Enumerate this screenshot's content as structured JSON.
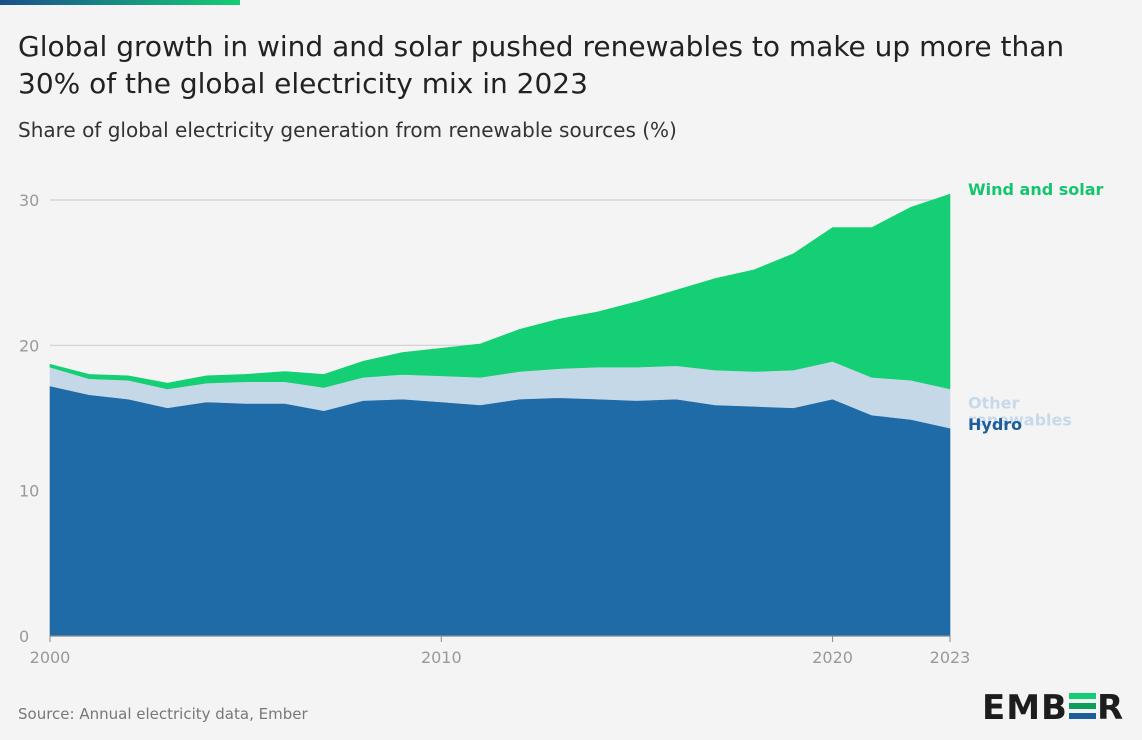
{
  "title": "Global growth in wind and solar pushed renewables to make up more than 30% of the global electricity mix in 2023",
  "subtitle": "Share of global electricity generation from renewable sources (%)",
  "source": "Source: Annual electricity data, Ember",
  "logo": {
    "text_before": "EMB",
    "text_after": "R",
    "mark_colors": [
      "#13ce74",
      "#0d9f5a",
      "#1b5e9b"
    ]
  },
  "colors": {
    "background": "#f4f4f4",
    "hydro": "#1f6ba7",
    "other": "#c5d8e8",
    "wind_solar": "#14cf73",
    "grid": "#cfcfcf",
    "axis_text": "#999999",
    "topbar_start": "#1b4e8c",
    "topbar_end": "#13ce74"
  },
  "chart_data": {
    "type": "area",
    "stacked": true,
    "x": [
      2000,
      2001,
      2002,
      2003,
      2004,
      2005,
      2006,
      2007,
      2008,
      2009,
      2010,
      2011,
      2012,
      2013,
      2014,
      2015,
      2016,
      2017,
      2018,
      2019,
      2020,
      2021,
      2022,
      2023
    ],
    "series": [
      {
        "name": "Hydro",
        "color": "#1f6ba7",
        "label_color": "#1b5e9b",
        "values": [
          17.2,
          16.6,
          16.3,
          15.7,
          16.1,
          16.0,
          16.0,
          15.5,
          16.2,
          16.3,
          16.1,
          15.9,
          16.3,
          16.4,
          16.3,
          16.2,
          16.3,
          15.9,
          15.8,
          15.7,
          16.3,
          15.2,
          14.9,
          14.3
        ]
      },
      {
        "name": "Other renewables",
        "color": "#c5d8e8",
        "label_color": "#c7d9ea",
        "values": [
          1.3,
          1.1,
          1.3,
          1.3,
          1.3,
          1.5,
          1.5,
          1.6,
          1.6,
          1.7,
          1.8,
          1.9,
          1.9,
          2.0,
          2.2,
          2.3,
          2.3,
          2.4,
          2.4,
          2.6,
          2.6,
          2.6,
          2.7,
          2.7
        ]
      },
      {
        "name": "Wind and solar",
        "color": "#14cf73",
        "label_color": "#13c56c",
        "values": [
          0.2,
          0.3,
          0.3,
          0.4,
          0.5,
          0.5,
          0.7,
          0.9,
          1.1,
          1.5,
          1.9,
          2.3,
          2.9,
          3.4,
          3.8,
          4.5,
          5.2,
          6.3,
          7.0,
          8.0,
          9.2,
          10.3,
          11.9,
          13.4
        ]
      }
    ],
    "xticks": [
      2000,
      2010,
      2020,
      2023
    ],
    "yticks": [
      0,
      10,
      20,
      30
    ],
    "xlim": [
      2000,
      2023
    ],
    "ylim": [
      0,
      30
    ],
    "xlabel": "",
    "ylabel": "",
    "grid": true,
    "legend": "inline-right"
  }
}
